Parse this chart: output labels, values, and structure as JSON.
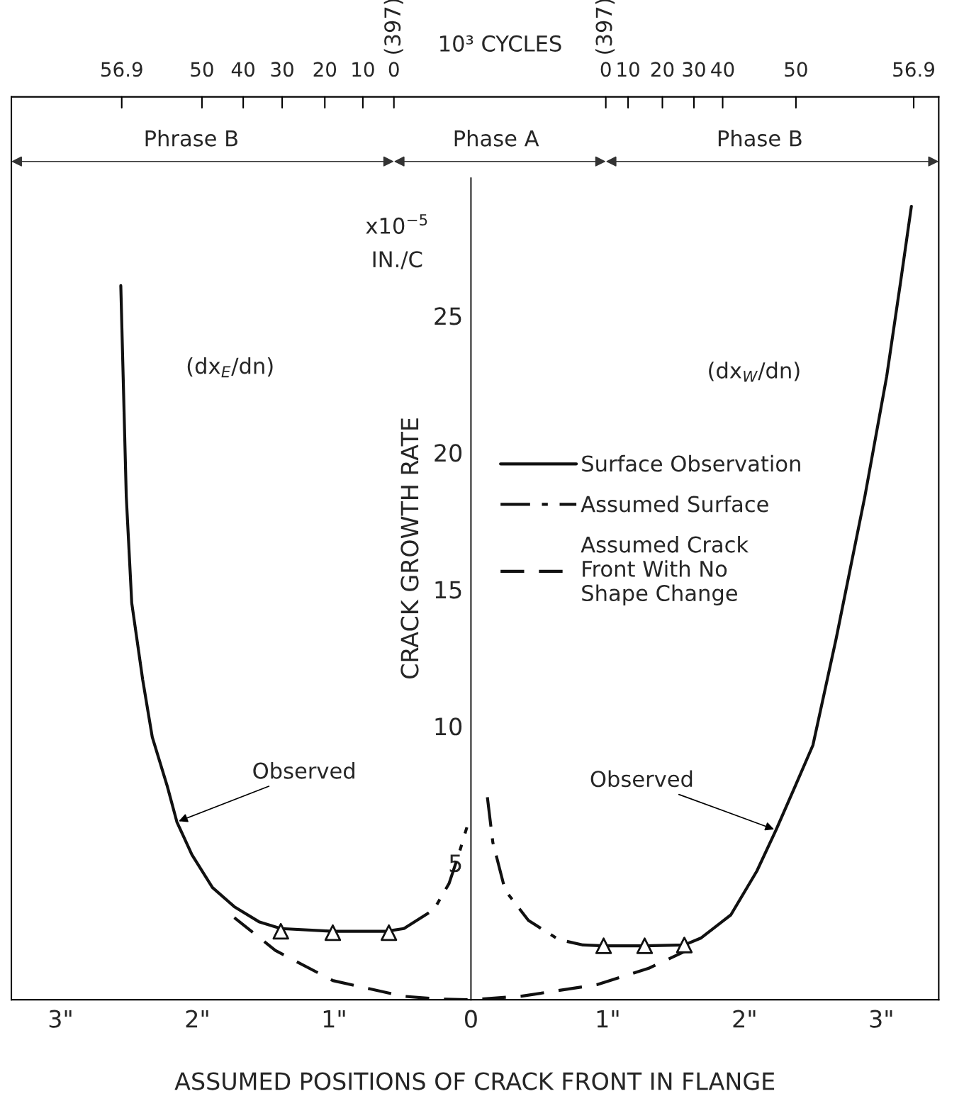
{
  "chart_data": {
    "type": "line",
    "xlabel": "ASSUMED POSITIONS OF CRACK FRONT IN FLANGE",
    "ylabel": "CRACK GROWTH RATE",
    "x2label": "10³ CYCLES",
    "xlim": [
      -3.36,
      3.42
    ],
    "xticks": [
      {
        "value": -3,
        "label": "3\""
      },
      {
        "value": -2,
        "label": "2\""
      },
      {
        "value": -1,
        "label": "1\""
      },
      0,
      {
        "value": 1,
        "label": "1\""
      },
      {
        "value": 2,
        "label": "2\""
      },
      {
        "value": 3,
        "label": "3\""
      }
    ],
    "ylim": [
      0,
      33
    ],
    "yticks": [
      5,
      10,
      15,
      20,
      25
    ],
    "legend": "center right",
    "grid": false,
    "series": [
      {
        "name": "Surface Observation",
        "color": "#111111",
        "line_style": "solid",
        "x": [
          -2.56,
          -2.52,
          -2.48,
          -2.4,
          -2.33,
          -2.22,
          -2.15,
          -2.04,
          -1.89,
          -1.73,
          -1.55,
          -1.39,
          -1.01,
          -0.62,
          -0.49
        ],
        "values": [
          26.1,
          18.4,
          14.5,
          11.7,
          9.6,
          7.8,
          6.5,
          5.3,
          4.1,
          3.4,
          2.85,
          2.6,
          2.5,
          2.5,
          2.6
        ]
      },
      {
        "color": "#111111",
        "line_style": "solid",
        "x": [
          0.82,
          0.97,
          1.27,
          1.56,
          1.68,
          1.9,
          2.09,
          2.23,
          2.37,
          2.5,
          2.67,
          2.88,
          3.04,
          3.14,
          3.22
        ],
        "values": [
          2.0,
          1.97,
          1.97,
          2.0,
          2.25,
          3.1,
          4.7,
          6.2,
          7.8,
          9.3,
          13.2,
          18.4,
          22.8,
          26.2,
          29.0
        ]
      },
      {
        "name": "Assumed Surface",
        "color": "#111111",
        "line_style": "dashdot",
        "x": [
          -0.49,
          -0.27,
          -0.16,
          -0.09,
          -0.03
        ],
        "values": [
          2.6,
          3.3,
          4.25,
          5.3,
          6.3
        ]
      },
      {
        "color": "#111111",
        "line_style": "dashdot",
        "x": [
          0.12,
          0.16,
          0.25,
          0.42,
          0.64,
          0.82
        ],
        "values": [
          7.4,
          5.75,
          4.0,
          2.9,
          2.2,
          2.0
        ]
      },
      {
        "name": "Assumed Crack\nFront With No\nShape Change",
        "color": "#111111",
        "line_style": "dashed",
        "x": [
          -1.73,
          -1.43,
          -1.01,
          -0.5,
          -0.25,
          0,
          0.37,
          0.92,
          1.3,
          1.6
        ],
        "values": [
          3.0,
          1.8,
          0.7,
          0.13,
          0.03,
          0,
          0.13,
          0.55,
          1.15,
          1.85
        ]
      },
      {
        "type": "scatter",
        "color": "#111111",
        "marker": "triangle",
        "x": [
          -1.39,
          -1.01,
          -0.6,
          0.97,
          1.27,
          1.56
        ],
        "values": [
          2.5,
          2.45,
          2.45,
          1.97,
          1.97,
          2.0
        ]
      }
    ],
    "annotations": [
      "56.9",
      "50",
      "40",
      "30",
      "20",
      "10",
      "0",
      "0",
      "10",
      "20",
      "30",
      "40",
      "50",
      "56.9",
      "Phrase B",
      "Phase A",
      "Phase B",
      "(397)",
      "(397)",
      "x10$^{−5}$",
      "IN./C",
      "(dx$_{E}$/dn)",
      "(dx$_{W}$/dn)",
      {
        "text": "Observed",
        "x": -2.15,
        "y": 6.5
      },
      {
        "text": "Observed",
        "x": 2.23,
        "y": 6.2
      }
    ]
  }
}
